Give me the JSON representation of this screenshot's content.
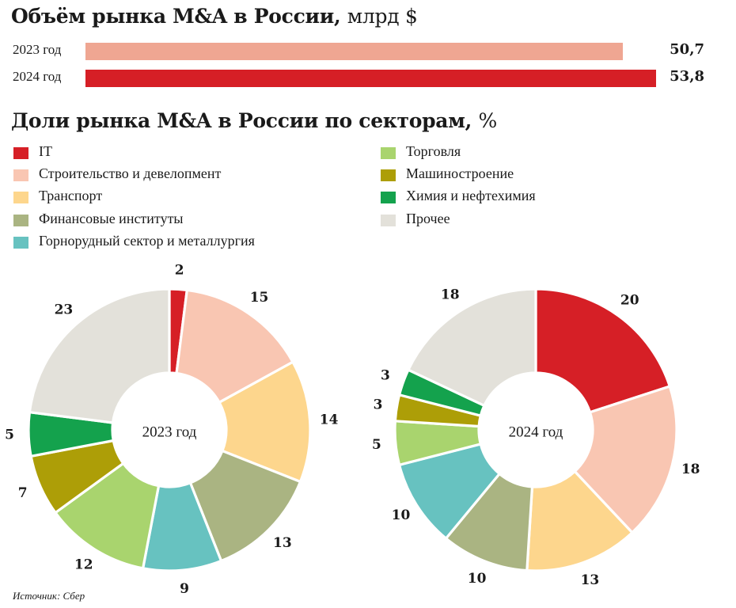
{
  "volume_section": {
    "title": "Объём рынка M&A в России,",
    "unit": "млрд $"
  },
  "sectors_section": {
    "title": "Доли рынка M&A в России по секторам,",
    "unit": "%"
  },
  "source": "Источник: Сбер",
  "chart_data": [
    {
      "type": "bar",
      "orientation": "horizontal",
      "categories": [
        "2023 год",
        "2024 год"
      ],
      "values": [
        50.7,
        53.8
      ],
      "value_labels": [
        "50,7",
        "53,8"
      ],
      "colors": [
        "#efa692",
        "#d61f26"
      ],
      "xlim": [
        0,
        53.8
      ]
    },
    {
      "type": "pie",
      "variant": "donut",
      "legend": [
        {
          "label": "IT",
          "color": "#d61f26"
        },
        {
          "label": "Строительство и девелопмент",
          "color": "#f9c6b2"
        },
        {
          "label": "Транспорт",
          "color": "#fdd68d"
        },
        {
          "label": "Финансовые институты",
          "color": "#aab482"
        },
        {
          "label": "Горнорудный сектор и металлургия",
          "color": "#67c2c0"
        },
        {
          "label": "Торговля",
          "color": "#a9d46e"
        },
        {
          "label": "Машиностроение",
          "color": "#ad9e07"
        },
        {
          "label": "Химия и нефтехимия",
          "color": "#14a24d"
        },
        {
          "label": "Прочее",
          "color": "#e3e1da"
        }
      ],
      "series": [
        {
          "name": "2023 год",
          "values": [
            2,
            15,
            14,
            13,
            9,
            12,
            7,
            5,
            23
          ]
        },
        {
          "name": "2024 год",
          "values": [
            20,
            18,
            13,
            10,
            10,
            5,
            3,
            3,
            18
          ]
        }
      ]
    }
  ]
}
